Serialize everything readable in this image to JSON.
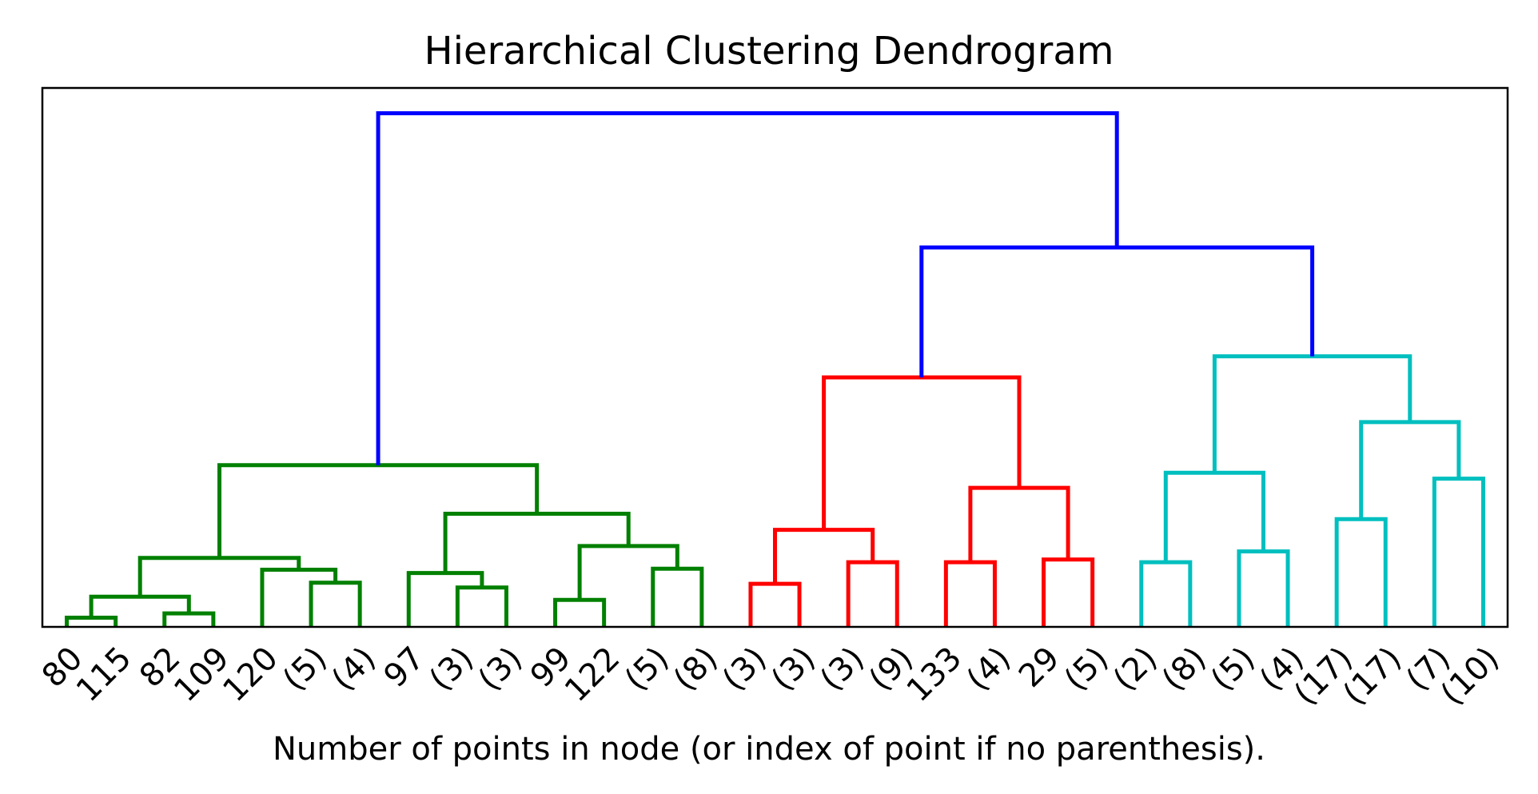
{
  "chart_data": {
    "type": "dendrogram",
    "title": "Hierarchical Clustering Dendrogram",
    "xlabel": "Number of points in node (or index of point if no parenthesis).",
    "ylabel": "",
    "ylim": [
      0,
      100
    ],
    "yaxis_ticks_shown": false,
    "grid": false,
    "legend": "none",
    "colors": {
      "above_threshold": "#0000ff",
      "cluster_1": "#008000",
      "cluster_2": "#ff0000",
      "cluster_3": "#00bfbf"
    },
    "leaves": [
      "80",
      "115",
      "82",
      "109",
      "120",
      "(5)",
      "(4)",
      "97",
      "(3)",
      "(3)",
      "99",
      "122",
      "(5)",
      "(8)",
      "(3)",
      "(3)",
      "(3)",
      "(9)",
      "133",
      "(4)",
      "29",
      "(5)",
      "(2)",
      "(8)",
      "(5)",
      "(4)",
      "(17)",
      "(17)",
      "(7)",
      "(10)"
    ],
    "merges": [
      {
        "left": 0,
        "right": 1,
        "height": 1.7,
        "color": "cluster_1"
      },
      {
        "left": 2,
        "right": 3,
        "height": 2.5,
        "color": "cluster_1"
      },
      {
        "left": 30,
        "right": 31,
        "height": 5.6,
        "color": "cluster_1"
      },
      {
        "left": 5,
        "right": 6,
        "height": 8.2,
        "color": "cluster_1"
      },
      {
        "left": 4,
        "right": 33,
        "height": 10.6,
        "color": "cluster_1"
      },
      {
        "left": 32,
        "right": 34,
        "height": 12.8,
        "color": "cluster_1"
      },
      {
        "left": 8,
        "right": 9,
        "height": 7.3,
        "color": "cluster_1"
      },
      {
        "left": 7,
        "right": 36,
        "height": 10.0,
        "color": "cluster_1"
      },
      {
        "left": 10,
        "right": 11,
        "height": 5.0,
        "color": "cluster_1"
      },
      {
        "left": 12,
        "right": 13,
        "height": 10.8,
        "color": "cluster_1"
      },
      {
        "left": 38,
        "right": 39,
        "height": 15.0,
        "color": "cluster_1"
      },
      {
        "left": 37,
        "right": 40,
        "height": 21.0,
        "color": "cluster_1"
      },
      {
        "left": 35,
        "right": 41,
        "height": 30.0,
        "color": "cluster_1"
      },
      {
        "left": 14,
        "right": 15,
        "height": 8.0,
        "color": "cluster_2"
      },
      {
        "left": 16,
        "right": 17,
        "height": 12.0,
        "color": "cluster_2"
      },
      {
        "left": 43,
        "right": 44,
        "height": 18.0,
        "color": "cluster_2"
      },
      {
        "left": 18,
        "right": 19,
        "height": 12.0,
        "color": "cluster_2"
      },
      {
        "left": 20,
        "right": 21,
        "height": 12.5,
        "color": "cluster_2"
      },
      {
        "left": 46,
        "right": 47,
        "height": 25.8,
        "color": "cluster_2"
      },
      {
        "left": 45,
        "right": 48,
        "height": 46.3,
        "color": "cluster_2"
      },
      {
        "left": 22,
        "right": 23,
        "height": 12.0,
        "color": "cluster_3"
      },
      {
        "left": 24,
        "right": 25,
        "height": 14.0,
        "color": "cluster_3"
      },
      {
        "left": 50,
        "right": 51,
        "height": 28.6,
        "color": "cluster_3"
      },
      {
        "left": 26,
        "right": 27,
        "height": 20.0,
        "color": "cluster_3"
      },
      {
        "left": 28,
        "right": 29,
        "height": 27.5,
        "color": "cluster_3"
      },
      {
        "left": 53,
        "right": 54,
        "height": 38.0,
        "color": "cluster_3"
      },
      {
        "left": 52,
        "right": 55,
        "height": 50.2,
        "color": "cluster_3"
      },
      {
        "left": 49,
        "right": 56,
        "height": 70.4,
        "color": "above_threshold"
      },
      {
        "left": 42,
        "right": 57,
        "height": 95.3,
        "color": "above_threshold"
      }
    ]
  }
}
